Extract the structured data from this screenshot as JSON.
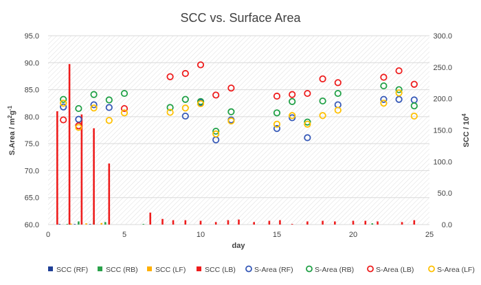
{
  "chart_data": {
    "type": "bar+scatter",
    "title": "SCC vs. Surface Area",
    "xlabel": "day",
    "ylabel_left_prefix": "S.Area / m",
    "ylabel_left_sup": "2",
    "ylabel_left_mid": "g",
    "ylabel_left_sup2": "-1",
    "ylabel_right_prefix": "SCC / 10",
    "ylabel_right_sup": "4",
    "xlim": [
      0,
      25
    ],
    "ylim_left": [
      60,
      95
    ],
    "ylim_right": [
      0,
      300
    ],
    "x_ticks": [
      "0",
      "5",
      "10",
      "15",
      "20",
      "25"
    ],
    "y_left_ticks": [
      "60.0",
      "65.0",
      "70.0",
      "75.0",
      "80.0",
      "85.0",
      "90.0",
      "95.0"
    ],
    "y_right_ticks": [
      "0.0",
      "50.0",
      "100.0",
      "150.0",
      "200.0",
      "250.0",
      "300.0"
    ],
    "bar_series": [
      {
        "name": "SCC (RF)",
        "color": "#1f3f96",
        "offset": -0.225,
        "x": [
          0.75,
          1.75,
          2.75,
          3.75
        ],
        "values": [
          0.5,
          0.8,
          0.6,
          0.6
        ]
      },
      {
        "name": "SCC (RB)",
        "color": "#2aa24a",
        "offset": -0.075,
        "x": [
          1.25,
          2,
          3,
          3.75,
          6.25,
          21.25
        ],
        "values": [
          0.8,
          5,
          7,
          4,
          1,
          2
        ]
      },
      {
        "name": "SCC (LF)",
        "color": "#ffb000",
        "offset": 0.075,
        "x": [
          1.5,
          2.5,
          3.5
        ],
        "values": [
          1.5,
          2,
          2.5
        ]
      },
      {
        "name": "SCC (LB)",
        "color": "#ee1c1c",
        "offset": 0.225,
        "x": [
          0.6,
          1.4,
          2.2,
          3,
          4,
          6.7,
          7.5,
          8.2,
          9,
          10,
          11,
          11.8,
          12.5,
          13.5,
          14.5,
          15.2,
          16,
          17,
          18,
          18.8,
          20,
          20.8,
          21.6,
          23.2,
          24
        ],
        "values": [
          180,
          255,
          175,
          153,
          97,
          19,
          9,
          7,
          7,
          6,
          4,
          7,
          8,
          4,
          6,
          7,
          1,
          5,
          6,
          5,
          6,
          6,
          5,
          4,
          7
        ]
      }
    ],
    "scatter_series": [
      {
        "name": "S-Area (RF)",
        "color": "#3558b7",
        "x": [
          1,
          2,
          3,
          4,
          9,
          10,
          11,
          12,
          15,
          16,
          17,
          19,
          22,
          23,
          24
        ],
        "values": [
          81.8,
          79.5,
          82.2,
          81.7,
          80.1,
          82.6,
          75.7,
          79.4,
          77.8,
          79.8,
          76.1,
          82.2,
          83.2,
          83.2,
          83.1
        ]
      },
      {
        "name": "S-Area (RB)",
        "color": "#1fa045",
        "x": [
          1,
          2,
          3,
          4,
          5,
          8,
          9,
          10,
          11,
          12,
          15,
          16,
          17,
          18,
          19,
          22,
          23,
          24
        ],
        "values": [
          83.2,
          81.5,
          84.1,
          83.1,
          84.3,
          81.7,
          83.2,
          82.8,
          77.3,
          80.9,
          80.7,
          82.8,
          79.0,
          82.9,
          84.3,
          85.7,
          85.0,
          82.0
        ]
      },
      {
        "name": "S-Area (LB)",
        "color": "#ee1c1c",
        "x": [
          1,
          2,
          5,
          8,
          9,
          10,
          11,
          12,
          15,
          16,
          17,
          18,
          19,
          22,
          23,
          24
        ],
        "values": [
          79.4,
          78.3,
          81.5,
          87.4,
          88.0,
          89.6,
          84.0,
          85.3,
          83.8,
          84.1,
          84.3,
          87.0,
          86.3,
          87.3,
          88.5,
          86.0
        ]
      },
      {
        "name": "S-Area (LF)",
        "color": "#ffc000",
        "x": [
          1,
          2,
          3,
          4,
          5,
          8,
          9,
          10,
          11,
          12,
          15,
          16,
          17,
          18,
          19,
          22,
          23,
          24
        ],
        "values": [
          82.5,
          78.0,
          81.6,
          79.3,
          80.7,
          80.8,
          81.6,
          82.4,
          76.8,
          79.2,
          78.6,
          80.2,
          78.6,
          80.2,
          81.2,
          82.5,
          84.4,
          80.1
        ]
      }
    ],
    "legend": {
      "position": "bottom",
      "items": [
        {
          "label": "SCC (RF)",
          "kind": "square",
          "color": "#1f3f96"
        },
        {
          "label": "SCC (RB)",
          "kind": "square",
          "color": "#2aa24a"
        },
        {
          "label": "SCC (LF)",
          "kind": "square",
          "color": "#ffb000"
        },
        {
          "label": "SCC (LB)",
          "kind": "square",
          "color": "#ee1c1c"
        },
        {
          "label": "S-Area (RF)",
          "kind": "circle",
          "color": "#3558b7"
        },
        {
          "label": "S-Area (RB)",
          "kind": "circle",
          "color": "#1fa045"
        },
        {
          "label": "S-Area (LB)",
          "kind": "circle",
          "color": "#ee1c1c"
        },
        {
          "label": "S-Area (LF)",
          "kind": "circle",
          "color": "#ffc000"
        }
      ]
    }
  }
}
